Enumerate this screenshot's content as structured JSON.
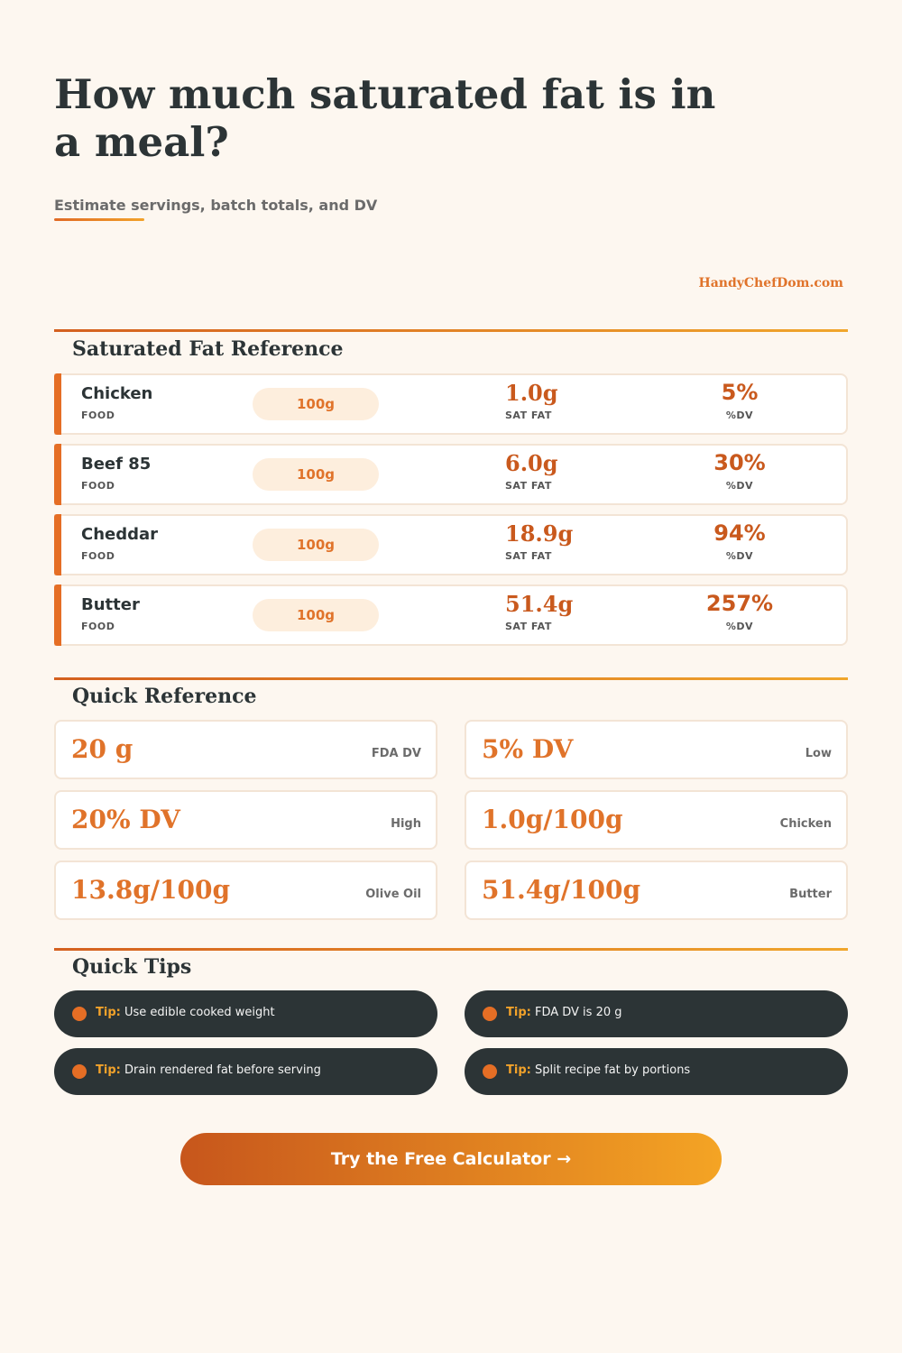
{
  "header": {
    "title": "How much saturated fat is in a meal?",
    "subtitle": "Estimate servings, batch totals, and DV",
    "brand": "HandyChefDom.com"
  },
  "reference": {
    "title": "Saturated Fat Reference",
    "food_label": "FOOD",
    "sat_label": "SAT FAT",
    "dv_label": "%DV",
    "items": [
      {
        "name": "Chicken",
        "portion": "100g",
        "sat_fat": "1.0g",
        "dv": "5%"
      },
      {
        "name": "Beef 85",
        "portion": "100g",
        "sat_fat": "6.0g",
        "dv": "30%"
      },
      {
        "name": "Cheddar",
        "portion": "100g",
        "sat_fat": "18.9g",
        "dv": "94%"
      },
      {
        "name": "Butter",
        "portion": "100g",
        "sat_fat": "51.4g",
        "dv": "257%"
      }
    ]
  },
  "quick_reference": {
    "title": "Quick Reference",
    "cards": [
      {
        "value": "20 g",
        "caption": "FDA DV"
      },
      {
        "value": "5% DV",
        "caption": "Low"
      },
      {
        "value": "20% DV",
        "caption": "High"
      },
      {
        "value": "1.0g/100g",
        "caption": "Chicken"
      },
      {
        "value": "13.8g/100g",
        "caption": "Olive Oil"
      },
      {
        "value": "51.4g/100g",
        "caption": "Butter"
      }
    ]
  },
  "tips": {
    "title": "Quick Tips",
    "prefix": "Tip:",
    "items": [
      "Use edible cooked weight",
      "FDA DV is 20 g",
      "Drain rendered fat before serving",
      "Split recipe fat by portions"
    ]
  },
  "cta": {
    "label": "Try the Free Calculator →"
  }
}
